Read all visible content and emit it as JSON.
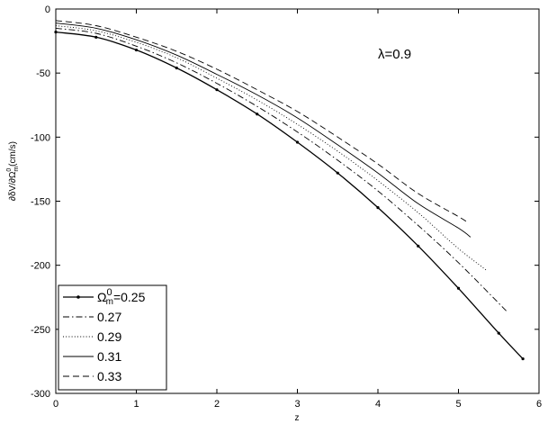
{
  "chart_data": {
    "type": "line",
    "xlabel": "z",
    "ylabel": "∂δV/∂Ω",
    "ylabel_sup": "0",
    "ylabel_sub": "m",
    "ylabel_unit": "(cm/s)",
    "annotation": "λ=0.9",
    "xlim": [
      0,
      6
    ],
    "ylim": [
      -300,
      0
    ],
    "xticks": [
      0,
      1,
      2,
      3,
      4,
      5,
      6
    ],
    "yticks": [
      0,
      -50,
      -100,
      -150,
      -200,
      -250,
      -300
    ],
    "grid": false,
    "legend_position": "bottom-left",
    "series": [
      {
        "name": "0.25",
        "legend_prefix": "Ω",
        "legend_sup": "0",
        "legend_sub": "m",
        "legend_suffix": "=0.25",
        "style": "solid-dots",
        "x": [
          0,
          0.5,
          1,
          1.5,
          2,
          2.5,
          3,
          3.5,
          4,
          4.5,
          5,
          5.5,
          5.8
        ],
        "y": [
          -18,
          -22,
          -32,
          -46,
          -63,
          -82,
          -104,
          -128,
          -155,
          -185,
          -218,
          -253,
          -273
        ]
      },
      {
        "name": "0.27",
        "style": "dashdot",
        "x": [
          0,
          0.5,
          1,
          1.5,
          2,
          2.5,
          3,
          3.5,
          4,
          4.5,
          5,
          5.6
        ],
        "y": [
          -15,
          -19,
          -29,
          -42,
          -58,
          -76,
          -96,
          -118,
          -142,
          -169,
          -198,
          -236
        ]
      },
      {
        "name": "0.29",
        "style": "dotted",
        "x": [
          0,
          0.5,
          1,
          1.5,
          2,
          2.5,
          3,
          3.5,
          4,
          4.5,
          5,
          5.35
        ],
        "y": [
          -13,
          -17,
          -26,
          -38,
          -54,
          -71,
          -90,
          -111,
          -134,
          -159,
          -187,
          -204
        ]
      },
      {
        "name": "0.31",
        "style": "solid",
        "x": [
          0,
          0.5,
          1,
          1.5,
          2,
          2.5,
          3,
          3.5,
          4,
          4.5,
          5,
          5.15
        ],
        "y": [
          -11,
          -15,
          -24,
          -36,
          -51,
          -67,
          -85,
          -106,
          -128,
          -152,
          -171,
          -178
        ]
      },
      {
        "name": "0.33",
        "style": "dashed",
        "x": [
          0,
          0.5,
          1,
          1.5,
          2,
          2.5,
          3,
          3.5,
          4,
          4.5,
          5,
          5.1
        ],
        "y": [
          -9,
          -13,
          -22,
          -33,
          -47,
          -63,
          -80,
          -100,
          -121,
          -144,
          -162,
          -166
        ]
      }
    ]
  }
}
